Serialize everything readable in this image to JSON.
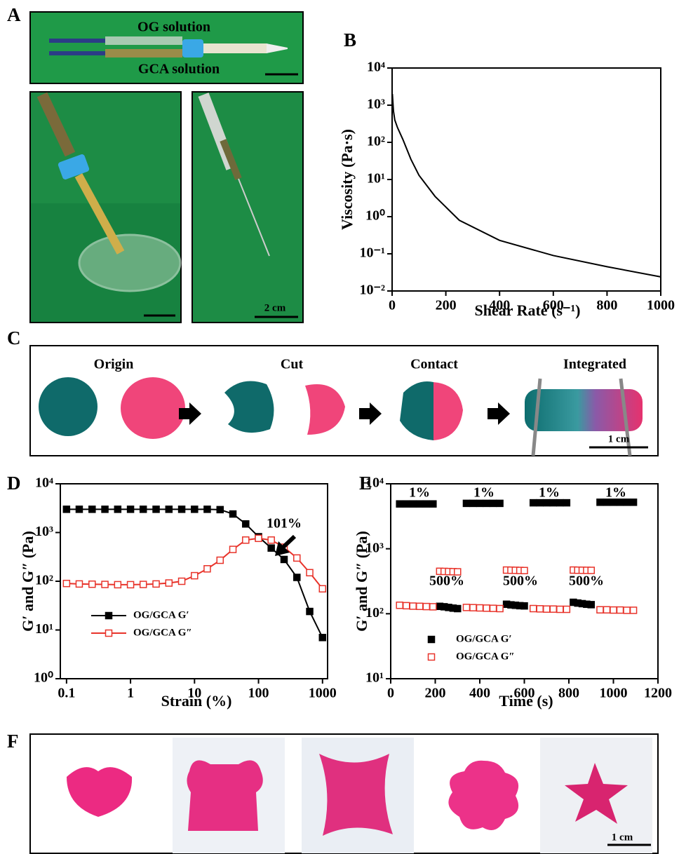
{
  "panels": {
    "A": {
      "label": "A",
      "og": "OG solution",
      "gca": "GCA solution",
      "scale": "2 cm"
    },
    "C": {
      "label": "C",
      "steps": [
        "Origin",
        "Cut",
        "Contact",
        "Integrated"
      ],
      "scale": "1 cm"
    },
    "F": {
      "label": "F",
      "scale": "1 cm"
    }
  },
  "chart_data": [
    {
      "type": "line",
      "label": "B",
      "x_label": "Shear Rate (s⁻¹)",
      "y_label": "Viscosity (Pa·s)",
      "x": [
        1,
        5,
        10,
        20,
        40,
        70,
        100,
        160,
        250,
        400,
        600,
        800,
        1000
      ],
      "values": [
        2000,
        700,
        400,
        250,
        120,
        35,
        13,
        3.5,
        0.8,
        0.23,
        0.09,
        0.045,
        0.024
      ],
      "color": "#000000",
      "xlim": [
        0,
        1000
      ],
      "xticks": [
        0,
        200,
        400,
        600,
        800,
        1000
      ],
      "ylog": true,
      "ylim": [
        0.01,
        10000
      ],
      "yticks": [
        {
          "value": 0.01,
          "label": "10⁻²"
        },
        {
          "value": 0.1,
          "label": "10⁻¹"
        },
        {
          "value": 1,
          "label": "10⁰"
        },
        {
          "value": 10,
          "label": "10¹"
        },
        {
          "value": 100,
          "label": "10²"
        },
        {
          "value": 1000,
          "label": "10³"
        },
        {
          "value": 10000,
          "label": "10⁴"
        }
      ]
    },
    {
      "type": "line",
      "label": "D",
      "x_label": "Strain (%)",
      "y_label": "G′ and G″ (Pa)",
      "x": [
        0.1,
        0.158,
        0.251,
        0.398,
        0.631,
        1,
        1.58,
        2.51,
        3.98,
        6.31,
        10,
        15.8,
        25.1,
        39.8,
        63.1,
        100,
        158,
        251,
        398,
        631,
        1000
      ],
      "series": [
        {
          "name": "OG/GCA G′",
          "color": "#000000",
          "marker": "filled-square",
          "values": [
            3000,
            3000,
            3000,
            3000,
            3000,
            3000,
            3000,
            3000,
            3000,
            3000,
            3000,
            3000,
            2950,
            2400,
            1500,
            820,
            480,
            280,
            120,
            24,
            7
          ]
        },
        {
          "name": "OG/GCA G″",
          "color": "#e8332a",
          "marker": "open-square",
          "values": [
            90,
            88,
            87,
            86,
            85,
            85,
            86,
            88,
            92,
            100,
            130,
            180,
            270,
            450,
            700,
            760,
            700,
            500,
            300,
            150,
            70
          ]
        }
      ],
      "annotations": [
        "101%"
      ],
      "legend": "lower-left",
      "xlog": true,
      "xlim": [
        0.08,
        1200
      ],
      "xticks": [
        0.1,
        1,
        10,
        100,
        1000
      ],
      "ylog": true,
      "ylim": [
        1,
        10000
      ],
      "yticks": [
        {
          "value": 1,
          "label": "10⁰"
        },
        {
          "value": 10,
          "label": "10¹"
        },
        {
          "value": 100,
          "label": "10²"
        },
        {
          "value": 1000,
          "label": "10³"
        },
        {
          "value": 10000,
          "label": "10⁴"
        }
      ]
    },
    {
      "type": "scatter",
      "label": "E",
      "x_label": "Time (s)",
      "y_label": "G′ and G″ (Pa)",
      "x": [
        40,
        70,
        100,
        130,
        160,
        190,
        220,
        240,
        260,
        280,
        300,
        340,
        370,
        400,
        430,
        460,
        490,
        520,
        540,
        560,
        580,
        600,
        640,
        670,
        700,
        730,
        760,
        790,
        820,
        840,
        860,
        880,
        900,
        940,
        970,
        1000,
        1030,
        1060,
        1090
      ],
      "series": [
        {
          "name": "OG/GCA G′",
          "color": "#000000",
          "marker": "filled-square",
          "values": [
            4900,
            4900,
            4900,
            4900,
            4900,
            4900,
            130,
            128,
            125,
            122,
            120,
            5000,
            5000,
            5000,
            5000,
            5000,
            5000,
            140,
            137,
            135,
            133,
            132,
            5100,
            5100,
            5100,
            5100,
            5100,
            5100,
            150,
            146,
            143,
            140,
            138,
            5200,
            5200,
            5200,
            5200,
            5200,
            5200
          ]
        },
        {
          "name": "OG/GCA G″",
          "color": "#e8332a",
          "marker": "open-square",
          "values": [
            135,
            133,
            131,
            130,
            129,
            128,
            450,
            448,
            446,
            444,
            442,
            125,
            124,
            123,
            122,
            121,
            120,
            470,
            468,
            466,
            464,
            462,
            120,
            119,
            118,
            118,
            117,
            117,
            470,
            468,
            467,
            466,
            465,
            115,
            115,
            114,
            114,
            113,
            113
          ]
        }
      ],
      "annotations": [
        "1%",
        "1%",
        "1%",
        "1%",
        "500%",
        "500%",
        "500%"
      ],
      "legend": "lower-left",
      "xlim": [
        0,
        1200
      ],
      "xticks": [
        0,
        200,
        400,
        600,
        800,
        1000,
        1200
      ],
      "ylog": true,
      "ylim": [
        10,
        10000
      ],
      "yticks": [
        {
          "value": 10,
          "label": "10¹"
        },
        {
          "value": 100,
          "label": "10²"
        },
        {
          "value": 1000,
          "label": "10³"
        },
        {
          "value": 10000,
          "label": "10⁴"
        }
      ]
    }
  ]
}
